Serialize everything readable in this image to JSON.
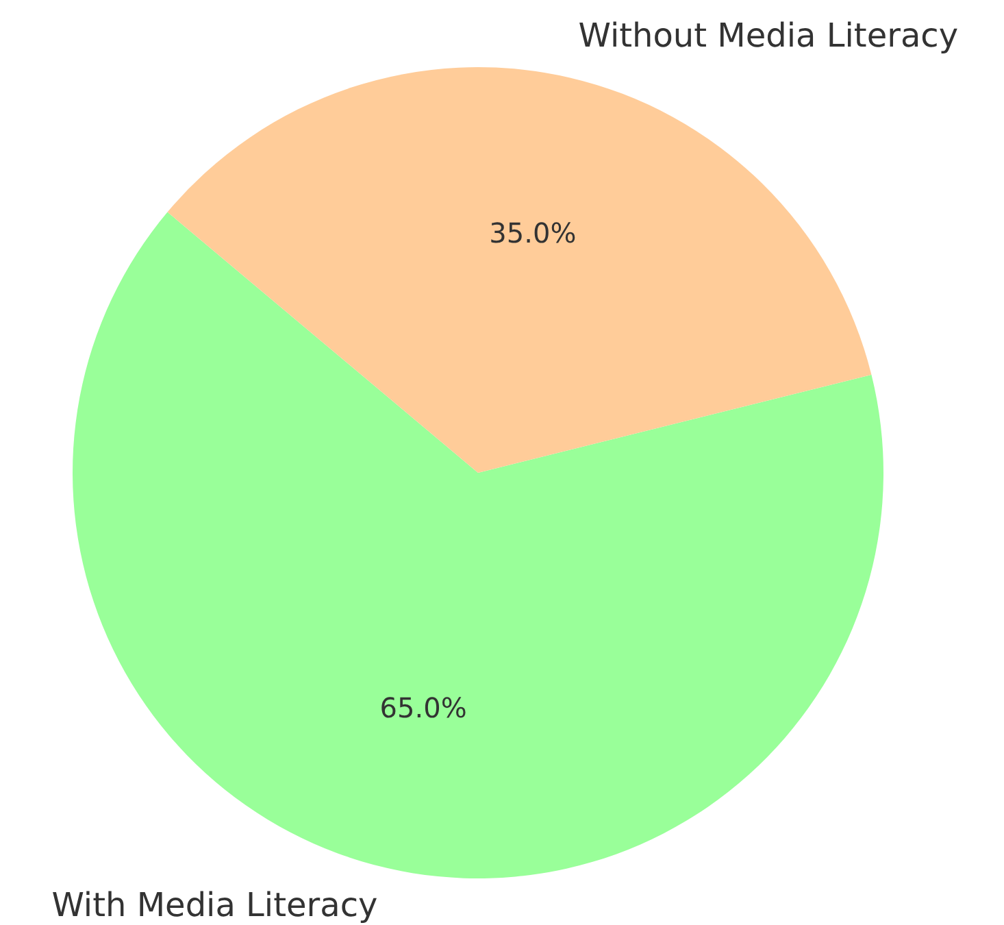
{
  "chart_data": {
    "type": "pie",
    "categories": [
      "With Media Literacy",
      "Without Media Literacy"
    ],
    "values": [
      65,
      35
    ],
    "colors": [
      "#99ff99",
      "#ffcc99"
    ],
    "value_labels": [
      "65.0%",
      "35.0%"
    ],
    "legend": false
  }
}
